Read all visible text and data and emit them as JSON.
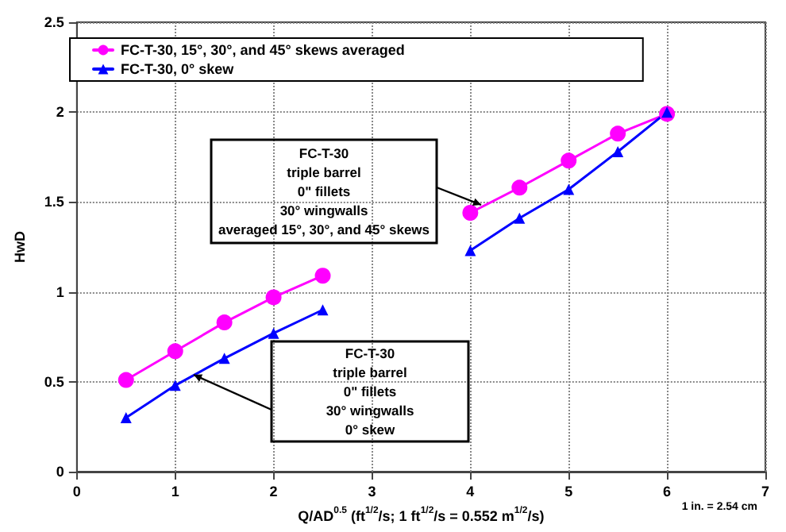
{
  "chart_data": {
    "type": "line",
    "xlabel": "Q/AD$^{0.5}$ (ft$^{1/2}$/s; 1 ft$^{1/2}$/s = 0.552 m$^{1/2}$/s)",
    "ylabel": "HwD",
    "series": [
      {
        "name": "FC-T-30, 15°, 30°, and 45° skews averaged",
        "color": "#ff00ff",
        "marker": "circle",
        "x": [
          0.5,
          1,
          1.5,
          2,
          2.5
        ],
        "values": [
          0.51,
          0.67,
          0.83,
          0.97,
          1.09
        ]
      },
      {
        "name": "FC-T-30, 0° skew",
        "color": "#0000ff",
        "marker": "triangle",
        "x": [
          0.5,
          1,
          1.5,
          2,
          2.5
        ],
        "values": [
          0.3,
          0.48,
          0.63,
          0.77,
          0.9
        ]
      },
      {
        "color": "#ff00ff",
        "marker": "circle",
        "x": [
          4,
          4.5,
          5,
          5.5,
          6
        ],
        "values": [
          1.44,
          1.58,
          1.73,
          1.88,
          1.99
        ]
      },
      {
        "color": "#0000ff",
        "marker": "triangle",
        "x": [
          4,
          4.5,
          5,
          5.5,
          6
        ],
        "values": [
          1.23,
          1.41,
          1.57,
          1.78,
          2.0
        ]
      }
    ],
    "xlim": [
      0,
      7
    ],
    "xticks": [
      0,
      1,
      2,
      3,
      4,
      5,
      6,
      7
    ],
    "ylim": [
      0,
      2.5
    ],
    "yticks": [
      0,
      0.5,
      1,
      1.5,
      2,
      2.5
    ],
    "grid": true,
    "legend": "top left",
    "line_style": "solid",
    "annotations": [
      "FC-T-30\ntriple barrel\n0\" fillets\n30° wingwalls\naveraged 15°, 30°, and 45° skews",
      "FC-T-30\ntriple barrel\n0\" fillets\n30° wingwalls\n0° skew",
      "1 in. = 2.54 cm"
    ]
  }
}
